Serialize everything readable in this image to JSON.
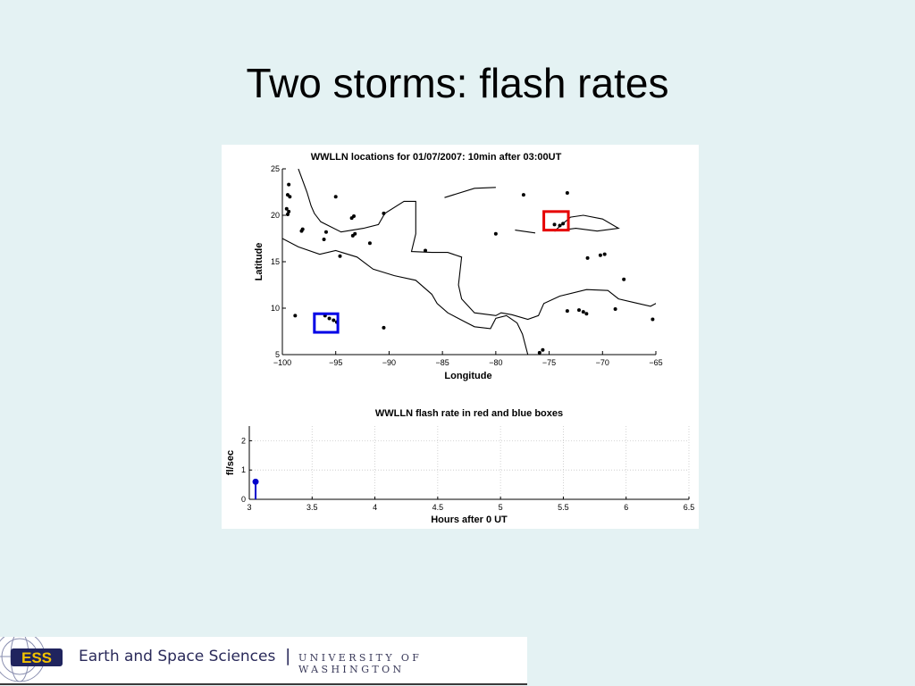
{
  "slide": {
    "title": "Two storms: flash rates"
  },
  "footer": {
    "logo_text": "ESS",
    "department": "Earth and Space Sciences",
    "separator": "|",
    "university": "UNIVERSITY OF WASHINGTON"
  },
  "colors": {
    "background": "#e4f2f3",
    "red_box": "#e60000",
    "blue_box": "#0000e6",
    "stem": "#0000cc"
  },
  "chart_data": [
    {
      "type": "scatter",
      "title": "WWLLN locations for 01/07/2007: 10min after 03:00UT",
      "xlabel": "Longitude",
      "ylabel": "Latitude",
      "xlim": [
        -100,
        -65
      ],
      "ylim": [
        5,
        25
      ],
      "x_ticks": [
        -100,
        -95,
        -90,
        -85,
        -80,
        -75,
        -70,
        -65
      ],
      "y_ticks": [
        5,
        10,
        15,
        20,
        25
      ],
      "x_tick_labels": [
        "−100",
        "−95",
        "−90",
        "−85",
        "−80",
        "−75",
        "−70",
        "−65"
      ],
      "y_tick_labels": [
        "5",
        "10",
        "15",
        "20",
        "25"
      ],
      "points": [
        {
          "x": -99.4,
          "y": 23.3
        },
        {
          "x": -99.5,
          "y": 22.2
        },
        {
          "x": -99.3,
          "y": 22.0
        },
        {
          "x": -99.6,
          "y": 20.7
        },
        {
          "x": -99.4,
          "y": 20.4
        },
        {
          "x": -99.5,
          "y": 20.1
        },
        {
          "x": -98.1,
          "y": 18.5
        },
        {
          "x": -98.2,
          "y": 18.3
        },
        {
          "x": -95.0,
          "y": 22.0
        },
        {
          "x": -93.3,
          "y": 19.9
        },
        {
          "x": -93.5,
          "y": 19.7
        },
        {
          "x": -93.2,
          "y": 18.0
        },
        {
          "x": -93.4,
          "y": 17.8
        },
        {
          "x": -95.9,
          "y": 18.2
        },
        {
          "x": -96.1,
          "y": 17.4
        },
        {
          "x": -91.8,
          "y": 17.0
        },
        {
          "x": -90.5,
          "y": 20.2
        },
        {
          "x": -94.6,
          "y": 15.6
        },
        {
          "x": -86.6,
          "y": 16.2
        },
        {
          "x": -98.8,
          "y": 9.2
        },
        {
          "x": -90.5,
          "y": 7.9
        },
        {
          "x": -96.0,
          "y": 9.2
        },
        {
          "x": -95.6,
          "y": 8.9
        },
        {
          "x": -95.2,
          "y": 8.7
        },
        {
          "x": -94.9,
          "y": 8.5
        },
        {
          "x": -80.0,
          "y": 18.0
        },
        {
          "x": -77.4,
          "y": 22.2
        },
        {
          "x": -75.6,
          "y": 5.5
        },
        {
          "x": -75.9,
          "y": 5.2
        },
        {
          "x": -74.5,
          "y": 19.0
        },
        {
          "x": -74.0,
          "y": 18.9
        },
        {
          "x": -73.7,
          "y": 19.1
        },
        {
          "x": -73.3,
          "y": 22.4
        },
        {
          "x": -71.4,
          "y": 15.4
        },
        {
          "x": -70.2,
          "y": 15.7
        },
        {
          "x": -69.8,
          "y": 15.8
        },
        {
          "x": -68.0,
          "y": 13.1
        },
        {
          "x": -73.3,
          "y": 9.7
        },
        {
          "x": -72.2,
          "y": 9.8
        },
        {
          "x": -71.8,
          "y": 9.6
        },
        {
          "x": -71.5,
          "y": 9.4
        },
        {
          "x": -68.8,
          "y": 9.9
        },
        {
          "x": -65.3,
          "y": 8.8
        }
      ],
      "boxes": [
        {
          "color": "red",
          "x0": -75.5,
          "x1": -73.2,
          "y0": 18.4,
          "y1": 20.4
        },
        {
          "color": "blue",
          "x0": -97.0,
          "x1": -94.8,
          "y0": 7.4,
          "y1": 9.4
        }
      ],
      "coastlines": [
        [
          [
            -98.5,
            25
          ],
          [
            -97.7,
            22.5
          ],
          [
            -97.3,
            21
          ],
          [
            -97.0,
            20.2
          ],
          [
            -96.4,
            19.3
          ],
          [
            -94.5,
            18.2
          ],
          [
            -92.4,
            18.6
          ],
          [
            -91.0,
            19.0
          ],
          [
            -90.4,
            20.2
          ],
          [
            -88.6,
            21.5
          ],
          [
            -87.5,
            21.5
          ],
          [
            -87.5,
            18.0
          ],
          [
            -87.9,
            16.1
          ],
          [
            -86.0,
            16.0
          ],
          [
            -84.5,
            16.0
          ],
          [
            -83.2,
            15.5
          ],
          [
            -83.5,
            12.5
          ],
          [
            -83.2,
            11.0
          ],
          [
            -82.0,
            9.5
          ],
          [
            -80.0,
            9.2
          ],
          [
            -79.5,
            9.5
          ],
          [
            -78.5,
            9.3
          ],
          [
            -77.0,
            8.8
          ],
          [
            -76.0,
            9.2
          ],
          [
            -75.5,
            10.5
          ],
          [
            -74.0,
            11.3
          ],
          [
            -71.5,
            12.0
          ],
          [
            -69.5,
            11.9
          ],
          [
            -68.5,
            11.0
          ],
          [
            -67.0,
            10.6
          ],
          [
            -65.5,
            10.2
          ],
          [
            -64.5,
            10.8
          ]
        ],
        [
          [
            -100.5,
            17.8
          ],
          [
            -98.5,
            16.6
          ],
          [
            -96.5,
            15.8
          ],
          [
            -95.0,
            16.2
          ],
          [
            -93.0,
            15.5
          ],
          [
            -91.5,
            14.2
          ],
          [
            -89.5,
            13.5
          ],
          [
            -87.5,
            13.0
          ],
          [
            -86.0,
            11.5
          ],
          [
            -85.5,
            10.5
          ],
          [
            -84.5,
            9.5
          ],
          [
            -83.0,
            8.6
          ],
          [
            -82.0,
            8.0
          ],
          [
            -80.5,
            7.8
          ],
          [
            -80.0,
            8.9
          ],
          [
            -79.0,
            9.2
          ],
          [
            -78.0,
            8.4
          ],
          [
            -77.5,
            7.2
          ],
          [
            -77.0,
            5.0
          ]
        ],
        [
          [
            -84.8,
            21.9
          ],
          [
            -82.0,
            22.9
          ],
          [
            -80.0,
            23.0
          ]
        ],
        [
          [
            -78.2,
            18.4
          ],
          [
            -76.3,
            18.1
          ]
        ],
        [
          [
            -74.5,
            18.3
          ],
          [
            -73.0,
            19.8
          ],
          [
            -71.8,
            20.0
          ],
          [
            -70.0,
            19.6
          ],
          [
            -68.5,
            18.6
          ],
          [
            -70.5,
            18.3
          ],
          [
            -72.5,
            18.6
          ],
          [
            -74.5,
            18.3
          ]
        ]
      ]
    },
    {
      "type": "bar",
      "title": "WWLLN flash rate in red and blue boxes",
      "xlabel": "Hours after 0 UT",
      "ylabel": "fl/sec",
      "xlim": [
        3,
        6.5
      ],
      "ylim": [
        0,
        2.5
      ],
      "x_ticks": [
        3,
        3.5,
        4,
        4.5,
        5,
        5.5,
        6,
        6.5
      ],
      "y_ticks": [
        0,
        1,
        2
      ],
      "x_tick_labels": [
        "3",
        "3.5",
        "4",
        "4.5",
        "5",
        "5.5",
        "6",
        "6.5"
      ],
      "y_tick_labels": [
        "0",
        "1",
        "2"
      ],
      "grid": true,
      "series": [
        {
          "color": "blue",
          "x": [
            3.05
          ],
          "y": [
            0.6
          ]
        }
      ]
    }
  ]
}
